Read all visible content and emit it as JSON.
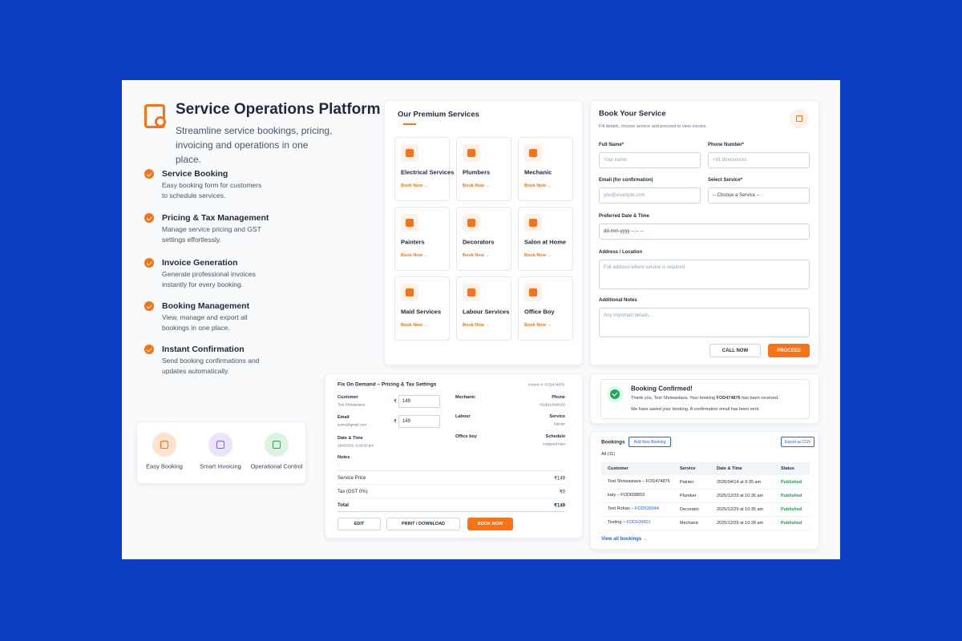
{
  "header": {
    "title": "Service Operations Platform",
    "subtitle": "Streamline service bookings, pricing, invoicing and operations in one place."
  },
  "features": [
    {
      "title": "Service Booking",
      "description": "Easy booking form for customers to schedule services."
    },
    {
      "title": "Pricing & Tax Management",
      "description": "Manage service pricing and GST settings effortlessly."
    },
    {
      "title": "Invoice Generation",
      "description": "Generate professional invoices instantly for every booking."
    },
    {
      "title": "Booking Management",
      "description": "View, manage and export all bookings in one place."
    },
    {
      "title": "Instant Confirmation",
      "description": "Send booking confirmations and updates automatically."
    }
  ],
  "highlights": [
    "Easy Booking",
    "Smart Invoicing",
    "Operational Control"
  ],
  "services": {
    "title": "Our Premium Services",
    "action": "Book Now →",
    "items": [
      "Electrical Services",
      "Plumbers",
      "Mechanic",
      "Painters",
      "Decorators",
      "Salon at Home",
      "Maid Services",
      "Labour Services",
      "Office Boy"
    ]
  },
  "booking_form": {
    "title": "Book Your Service",
    "subtitle": "Fill details, choose service and proceed to view invoice.",
    "fields": [
      {
        "label": "Full Name*",
        "placeholder": "Your name"
      },
      {
        "label": "Phone Number*",
        "placeholder": "+91 9xxxxxxxxx"
      },
      {
        "label": "Email (for confirmation)",
        "placeholder": "you@example.com"
      },
      {
        "label": "Select Service*",
        "placeholder": "-- Choose a Service --"
      },
      {
        "label": "Preferred Date & Time",
        "placeholder": "dd-mm-yyyy --:-- --"
      },
      {
        "label": "Address / Location",
        "placeholder": "Full address where service is required"
      },
      {
        "label": "Additional Notes",
        "placeholder": "Any important details..."
      }
    ],
    "call_button": "CALL NOW",
    "proceed_button": "PROCEED"
  },
  "invoice": {
    "title": "Fix On Demand – Pricing & Tax Settings",
    "number": "Invoice #: FOD474876",
    "currency": "₹",
    "left": [
      {
        "label": "Customer",
        "value": "Test Shriwastava",
        "price": "149"
      },
      {
        "label": "Email",
        "value": "some@gmail.com",
        "price": "149"
      },
      {
        "label": "Date & Time",
        "value": "16/4/2026, 6:30:00 pm"
      },
      {
        "label": "Notes",
        "value": "-"
      }
    ],
    "right": [
      {
        "label": "Mechanic",
        "key": "Phone",
        "value": "+918613496102"
      },
      {
        "label": "Labour",
        "key": "Service",
        "value": "Painter"
      },
      {
        "label": "Office boy",
        "key": "Schedule",
        "value": "Assigned later"
      }
    ],
    "summary": [
      {
        "label": "Service Price",
        "value": "₹149"
      },
      {
        "label": "Tax (GST 0%)",
        "value": "₹0"
      },
      {
        "label": "Total",
        "value": "₹149"
      }
    ],
    "buttons": [
      "EDIT",
      "PRINT / DOWNLOAD",
      "BOOK NOW"
    ]
  },
  "confirmation": {
    "title": "Booking Confirmed!",
    "message_prefix": "Thank you, Test Shriwastava. Your booking",
    "booking_id": "FOD474876",
    "message_suffix": "has been received.",
    "note": "We have saved your booking. A confirmation email has been sent."
  },
  "bookings": {
    "title": "Bookings",
    "add_button": "Add New Booking",
    "export_button": "Export as CSV",
    "filter": "All (11)",
    "columns": [
      "Customer",
      "Service",
      "Date & Time",
      "Status"
    ],
    "rows": [
      {
        "name": "Test Shriwastava –",
        "id": "FOD474876",
        "link": false,
        "service": "Painter",
        "date": "2026/04/14 at 9:35 am",
        "status": "Published"
      },
      {
        "name": "katy –",
        "id": "FOD608853",
        "link": false,
        "service": "Plumber",
        "date": "2025/12/29 at 10:36 am",
        "status": "Published"
      },
      {
        "name": "Test Rohan –",
        "id": "FOD539044",
        "link": true,
        "service": "Decorator",
        "date": "2025/12/29 at 10:35 am",
        "status": "Published"
      },
      {
        "name": "Testing –",
        "id": "FOD109601",
        "link": true,
        "service": "Mechanic",
        "date": "2025/12/29 at 10:28 am",
        "status": "Published"
      }
    ],
    "view_all": "View all bookings →"
  }
}
